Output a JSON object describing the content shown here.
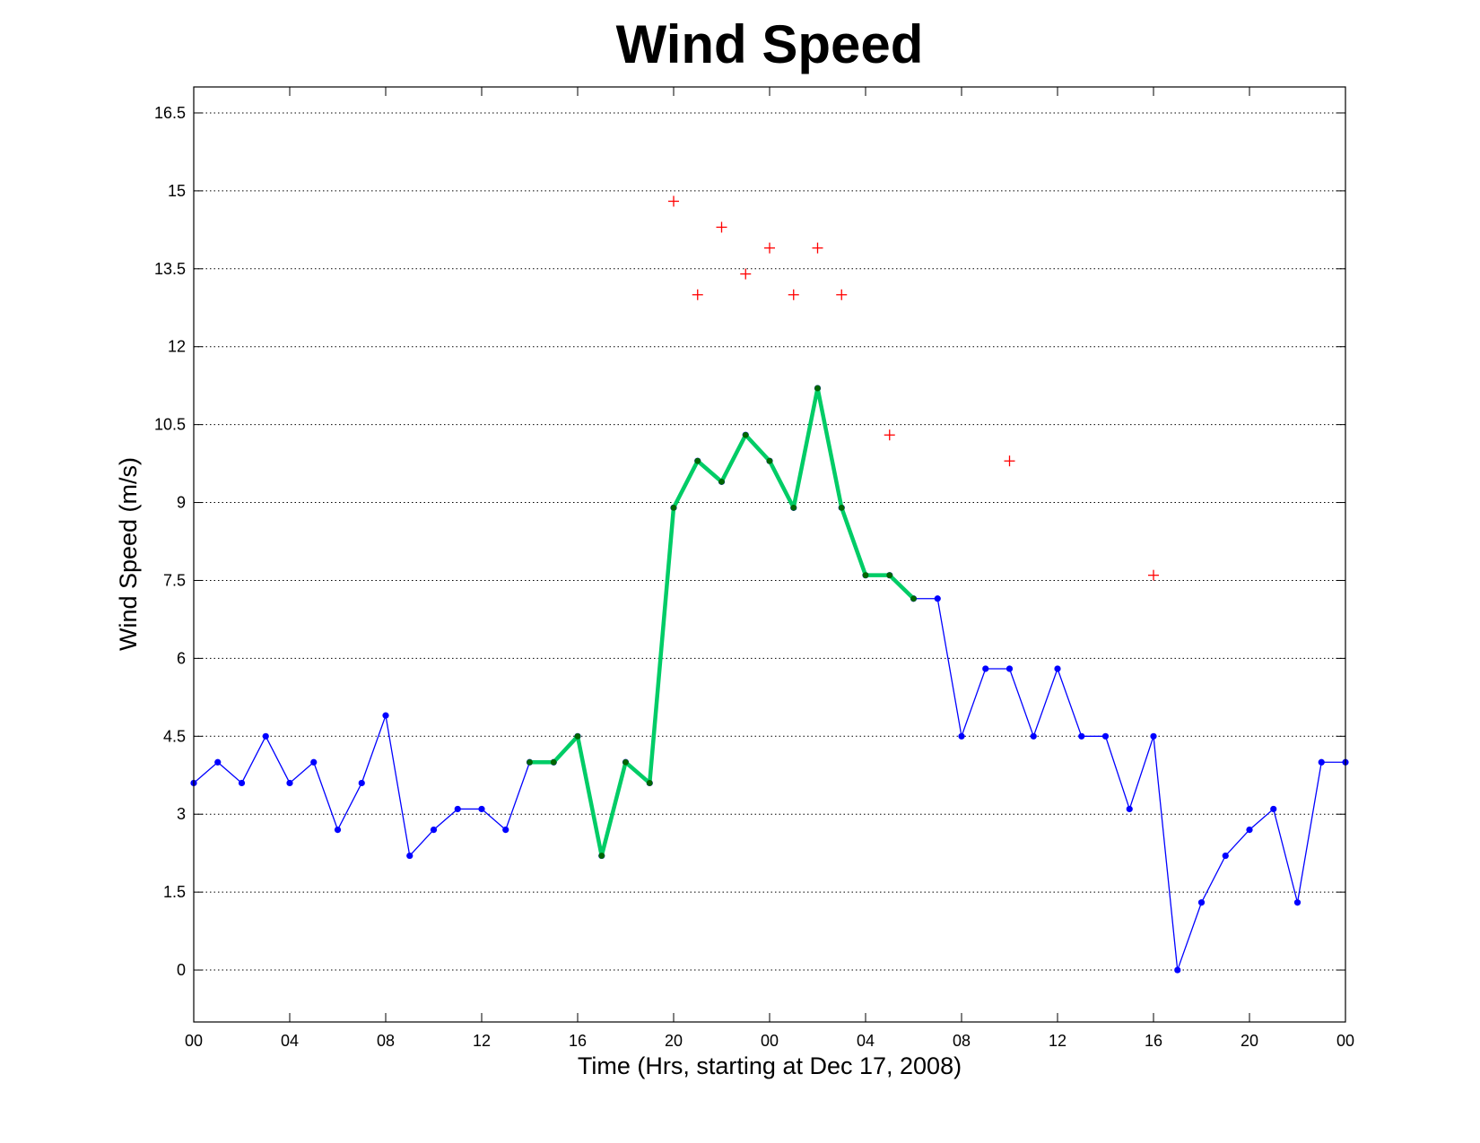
{
  "chart_data": {
    "type": "line",
    "title": "Wind Speed",
    "xlabel": "Time (Hrs, starting at Dec 17, 2008)",
    "ylabel": "Wind Speed (m/s)",
    "ylim": [
      -1,
      17
    ],
    "xlim": [
      0,
      48
    ],
    "grid": "horizontal dotted",
    "x_tick_labels": [
      {
        "x": 0,
        "label": "00"
      },
      {
        "x": 4,
        "label": "04"
      },
      {
        "x": 8,
        "label": "08"
      },
      {
        "x": 12,
        "label": "12"
      },
      {
        "x": 16,
        "label": "16"
      },
      {
        "x": 20,
        "label": "20"
      },
      {
        "x": 24,
        "label": "00"
      },
      {
        "x": 28,
        "label": "04"
      },
      {
        "x": 32,
        "label": "08"
      },
      {
        "x": 36,
        "label": "12"
      },
      {
        "x": 40,
        "label": "16"
      },
      {
        "x": 44,
        "label": "20"
      },
      {
        "x": 48,
        "label": "00"
      }
    ],
    "y_ticks": [
      0,
      1.5,
      3,
      4.5,
      6,
      7.5,
      9,
      10.5,
      12,
      13.5,
      15,
      16.5
    ],
    "y_tick_labels": [
      "0",
      "1.5",
      "3",
      "4.5",
      "6",
      "7.5",
      "9",
      "10.5",
      "12",
      "13.5",
      "15",
      "16.5"
    ],
    "series": [
      {
        "color": "#0000ff",
        "style": "thin line with dot markers",
        "x": [
          0,
          1,
          2,
          3,
          4,
          5,
          6,
          7,
          8,
          9,
          10,
          11,
          12,
          13,
          14,
          15,
          16,
          17,
          18,
          19,
          20,
          21,
          22,
          23,
          24,
          25,
          26,
          27,
          28,
          29,
          30,
          31,
          32,
          33,
          34,
          35,
          36,
          37,
          38,
          39,
          40,
          41,
          42,
          43,
          44,
          45,
          46,
          47,
          48
        ],
        "values": [
          3.6,
          4.0,
          3.6,
          4.5,
          3.6,
          4.0,
          2.7,
          3.6,
          4.9,
          2.2,
          2.7,
          3.1,
          3.1,
          2.7,
          4.0,
          4.0,
          4.5,
          2.2,
          4.0,
          3.6,
          8.9,
          9.8,
          9.4,
          10.3,
          9.8,
          8.9,
          11.2,
          8.9,
          7.6,
          7.6,
          7.15,
          7.15,
          4.5,
          5.8,
          5.8,
          4.5,
          5.8,
          4.5,
          4.5,
          3.1,
          4.5,
          0.0,
          1.3,
          2.2,
          2.7,
          3.1,
          1.3,
          4.0,
          4.0
        ]
      },
      {
        "color": "#00cc66",
        "style": "thick line with dark green dot markers",
        "x": [
          14,
          15,
          16,
          17,
          18,
          19,
          20,
          21,
          22,
          23,
          24,
          25,
          26,
          27,
          28,
          29,
          30
        ],
        "values": [
          4.0,
          4.0,
          4.5,
          2.2,
          4.0,
          3.6,
          8.9,
          9.8,
          9.4,
          10.3,
          9.8,
          8.9,
          11.2,
          8.9,
          7.6,
          7.6,
          7.15
        ]
      },
      {
        "color": "#ff0000",
        "style": "plus markers",
        "x": [
          20,
          21,
          22,
          23,
          24,
          25,
          26,
          27,
          29,
          34,
          40
        ],
        "values": [
          14.8,
          13.0,
          14.3,
          13.4,
          13.9,
          13.0,
          13.9,
          13.0,
          10.3,
          9.8,
          7.6
        ]
      }
    ]
  }
}
